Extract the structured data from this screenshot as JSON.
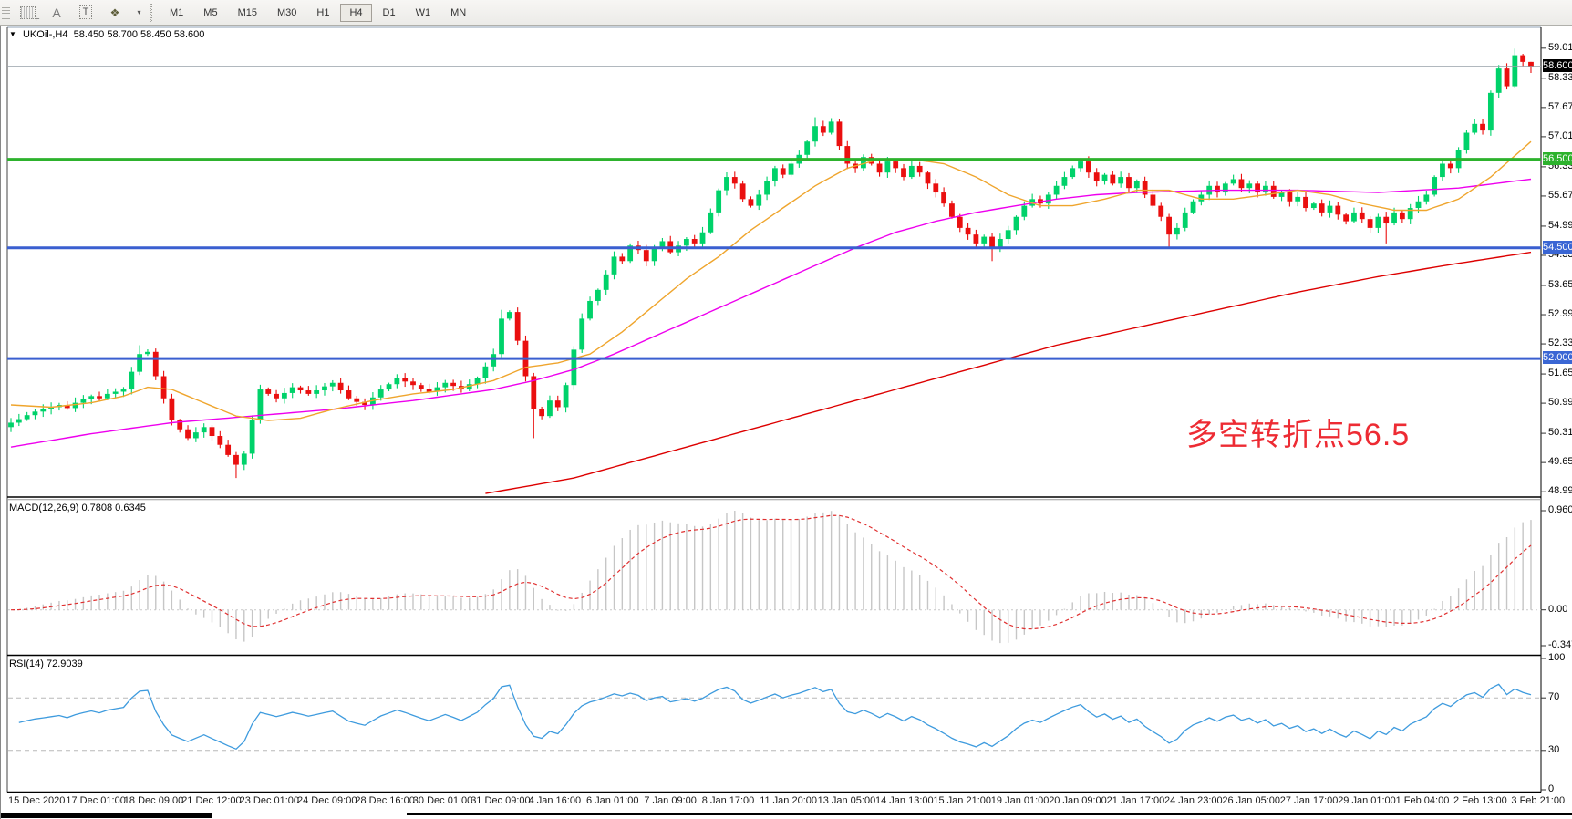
{
  "toolbar": {
    "tools": [
      {
        "id": "grid-f",
        "text": "F"
      },
      {
        "id": "cursor-a",
        "text": "A"
      },
      {
        "id": "text-box",
        "text": "T"
      },
      {
        "id": "arrange",
        "text": "❖"
      },
      {
        "id": "dropdown",
        "text": "▾"
      }
    ],
    "timeframes": [
      "M1",
      "M5",
      "M15",
      "M30",
      "H1",
      "H4",
      "D1",
      "W1",
      "MN"
    ],
    "active_timeframe": "H4"
  },
  "chart": {
    "symbol_title": "UKOil-,H4",
    "ohlc_text": "58.450 58.700 58.450 58.600",
    "collapse_icon": "▼",
    "annotation": "多空转折点56.5",
    "current_price": "58.600",
    "y_ticks": [
      "59.010",
      "58.330",
      "57.670",
      "57.010",
      "56.330",
      "55.670",
      "54.990",
      "54.330",
      "53.650",
      "52.990",
      "52.330",
      "51.650",
      "50.990",
      "50.310",
      "49.650",
      "48.990"
    ],
    "tags": [
      {
        "label": "58.600",
        "price": 58.6,
        "bg": "#000000"
      },
      {
        "label": "56.500",
        "price": 56.5,
        "bg": "#2DB22D"
      },
      {
        "label": "54.500",
        "price": 54.5,
        "bg": "#3A66D4"
      },
      {
        "label": "52.000",
        "price": 52.0,
        "bg": "#3A66D4"
      }
    ],
    "levels": [
      {
        "price": 58.6,
        "color": "#97A1A8",
        "width": 1
      },
      {
        "price": 56.5,
        "color": "#2DB22D",
        "width": 3
      },
      {
        "price": 54.5,
        "color": "#3A5FD0",
        "width": 3
      },
      {
        "price": 52.0,
        "color": "#3A5FD0",
        "width": 3
      }
    ],
    "closes": [
      50.55,
      50.63,
      50.72,
      50.8,
      50.85,
      50.9,
      50.95,
      50.88,
      51.0,
      51.08,
      51.15,
      51.1,
      51.2,
      51.25,
      51.3,
      51.7,
      52.1,
      52.15,
      51.6,
      51.1,
      50.6,
      50.4,
      50.2,
      50.33,
      50.45,
      50.25,
      50.05,
      49.82,
      49.6,
      49.85,
      50.6,
      51.3,
      51.2,
      51.1,
      51.22,
      51.35,
      51.28,
      51.2,
      51.28,
      51.37,
      51.45,
      51.28,
      51.1,
      51.02,
      50.95,
      51.12,
      51.3,
      51.42,
      51.55,
      51.48,
      51.4,
      51.32,
      51.25,
      51.35,
      51.45,
      51.38,
      51.3,
      51.42,
      51.55,
      51.82,
      52.1,
      52.9,
      53.05,
      52.4,
      51.6,
      50.85,
      50.7,
      51.05,
      50.9,
      51.4,
      52.2,
      52.9,
      53.3,
      53.55,
      53.9,
      54.3,
      54.2,
      54.55,
      54.45,
      54.2,
      54.5,
      54.65,
      54.4,
      54.55,
      54.7,
      54.6,
      54.85,
      55.3,
      55.8,
      56.1,
      55.95,
      55.6,
      55.45,
      55.7,
      56.0,
      56.3,
      56.15,
      56.4,
      56.6,
      56.9,
      57.25,
      57.1,
      57.35,
      56.8,
      56.4,
      56.3,
      56.55,
      56.4,
      56.2,
      56.45,
      56.3,
      56.1,
      56.35,
      56.2,
      55.95,
      55.75,
      55.5,
      55.2,
      54.95,
      54.8,
      54.6,
      54.75,
      54.5,
      54.7,
      54.9,
      55.2,
      55.45,
      55.6,
      55.5,
      55.7,
      55.9,
      56.1,
      56.3,
      56.45,
      56.2,
      56.0,
      56.15,
      55.95,
      56.1,
      55.85,
      56.0,
      55.7,
      55.45,
      55.2,
      54.8,
      54.95,
      55.3,
      55.55,
      55.7,
      55.9,
      55.75,
      55.95,
      56.05,
      55.85,
      55.95,
      55.75,
      55.9,
      55.65,
      55.75,
      55.55,
      55.65,
      55.4,
      55.5,
      55.3,
      55.45,
      55.25,
      55.1,
      55.3,
      55.15,
      54.95,
      55.2,
      55.05,
      55.3,
      55.15,
      55.4,
      55.55,
      55.7,
      56.1,
      56.4,
      56.3,
      56.7,
      57.1,
      57.3,
      57.15,
      58.0,
      58.55,
      58.15,
      58.85,
      58.7,
      58.6
    ],
    "wick_overrides": {
      "16": {
        "high": 52.3
      },
      "28": {
        "low": 49.3
      },
      "61": {
        "high": 53.1
      },
      "65": {
        "low": 50.2
      },
      "100": {
        "high": 57.45
      },
      "122": {
        "low": 54.2
      },
      "144": {
        "low": 54.5
      },
      "171": {
        "low": 54.6
      },
      "187": {
        "high": 59.0
      },
      "189": {
        "high": 58.7,
        "low": 58.45
      }
    },
    "ma_fast": [
      [
        0,
        50.95
      ],
      [
        5,
        50.9
      ],
      [
        10,
        51.0
      ],
      [
        14,
        51.15
      ],
      [
        17,
        51.35
      ],
      [
        20,
        51.3
      ],
      [
        24,
        51.0
      ],
      [
        28,
        50.7
      ],
      [
        32,
        50.6
      ],
      [
        36,
        50.65
      ],
      [
        40,
        50.85
      ],
      [
        45,
        51.05
      ],
      [
        50,
        51.2
      ],
      [
        55,
        51.3
      ],
      [
        60,
        51.5
      ],
      [
        64,
        51.8
      ],
      [
        68,
        51.9
      ],
      [
        72,
        52.1
      ],
      [
        76,
        52.6
      ],
      [
        80,
        53.2
      ],
      [
        84,
        53.8
      ],
      [
        88,
        54.3
      ],
      [
        92,
        54.9
      ],
      [
        96,
        55.4
      ],
      [
        100,
        55.9
      ],
      [
        104,
        56.3
      ],
      [
        108,
        56.5
      ],
      [
        112,
        56.5
      ],
      [
        116,
        56.4
      ],
      [
        120,
        56.1
      ],
      [
        124,
        55.7
      ],
      [
        128,
        55.45
      ],
      [
        132,
        55.45
      ],
      [
        136,
        55.6
      ],
      [
        140,
        55.8
      ],
      [
        144,
        55.8
      ],
      [
        148,
        55.6
      ],
      [
        152,
        55.6
      ],
      [
        156,
        55.7
      ],
      [
        160,
        55.8
      ],
      [
        164,
        55.7
      ],
      [
        168,
        55.5
      ],
      [
        172,
        55.35
      ],
      [
        176,
        55.35
      ],
      [
        180,
        55.6
      ],
      [
        184,
        56.1
      ],
      [
        189,
        56.9
      ]
    ],
    "ma_mid": [
      [
        0,
        50.0
      ],
      [
        10,
        50.3
      ],
      [
        20,
        50.55
      ],
      [
        30,
        50.7
      ],
      [
        40,
        50.85
      ],
      [
        50,
        51.05
      ],
      [
        60,
        51.3
      ],
      [
        65,
        51.5
      ],
      [
        70,
        51.75
      ],
      [
        75,
        52.1
      ],
      [
        80,
        52.5
      ],
      [
        85,
        52.9
      ],
      [
        90,
        53.3
      ],
      [
        95,
        53.7
      ],
      [
        100,
        54.1
      ],
      [
        105,
        54.5
      ],
      [
        110,
        54.85
      ],
      [
        115,
        55.1
      ],
      [
        120,
        55.3
      ],
      [
        125,
        55.45
      ],
      [
        130,
        55.6
      ],
      [
        135,
        55.7
      ],
      [
        140,
        55.75
      ],
      [
        150,
        55.8
      ],
      [
        160,
        55.8
      ],
      [
        170,
        55.75
      ],
      [
        180,
        55.85
      ],
      [
        189,
        56.05
      ]
    ],
    "ma_slow": [
      [
        59,
        48.95
      ],
      [
        70,
        49.3
      ],
      [
        80,
        49.8
      ],
      [
        90,
        50.3
      ],
      [
        100,
        50.8
      ],
      [
        110,
        51.3
      ],
      [
        120,
        51.8
      ],
      [
        130,
        52.3
      ],
      [
        140,
        52.7
      ],
      [
        150,
        53.1
      ],
      [
        160,
        53.5
      ],
      [
        170,
        53.85
      ],
      [
        180,
        54.15
      ],
      [
        189,
        54.4
      ]
    ],
    "colors": {
      "bull": "#00D26A",
      "bear": "#EA0F0F",
      "ma_fast": "#EFA52D",
      "ma_mid": "#EE00EE",
      "ma_slow": "#DD0000"
    }
  },
  "macd": {
    "label": "MACD(12,26,9) 0.7808 0.6345",
    "main_value": "0.7808",
    "signal_value": "0.6345",
    "ticks": [
      {
        "label": "0.9604",
        "v": 0.9604
      },
      {
        "label": "0.00",
        "v": 0
      },
      {
        "label": "-0.3473",
        "v": -0.3473
      }
    ],
    "colors": {
      "histogram": "#C6C6C6",
      "signal": "#E03030"
    }
  },
  "rsi": {
    "label": "RSI(14) 72.9039",
    "value": "72.9039",
    "ticks": [
      {
        "label": "100",
        "v": 100
      },
      {
        "label": "70",
        "v": 70
      },
      {
        "label": "30",
        "v": 30
      },
      {
        "label": "0",
        "v": 0
      }
    ],
    "level_lines": [
      70,
      30
    ],
    "color": "#3E9BDE"
  },
  "time_axis": [
    "15 Dec 2020",
    "17 Dec 01:00",
    "18 Dec 09:00",
    "21 Dec 12:00",
    "23 Dec 01:00",
    "24 Dec 09:00",
    "28 Dec 16:00",
    "30 Dec 01:00",
    "31 Dec 09:00",
    "4 Jan 16:00",
    "6 Jan 01:00",
    "7 Jan 09:00",
    "8 Jan 17:00",
    "11 Jan 20:00",
    "13 Jan 05:00",
    "14 Jan 13:00",
    "15 Jan 21:00",
    "19 Jan 01:00",
    "20 Jan 09:00",
    "21 Jan 17:00",
    "24 Jan 23:00",
    "26 Jan 05:00",
    "27 Jan 17:00",
    "29 Jan 01:00",
    "1 Feb 04:00",
    "2 Feb 13:00",
    "3 Feb 21:00"
  ]
}
